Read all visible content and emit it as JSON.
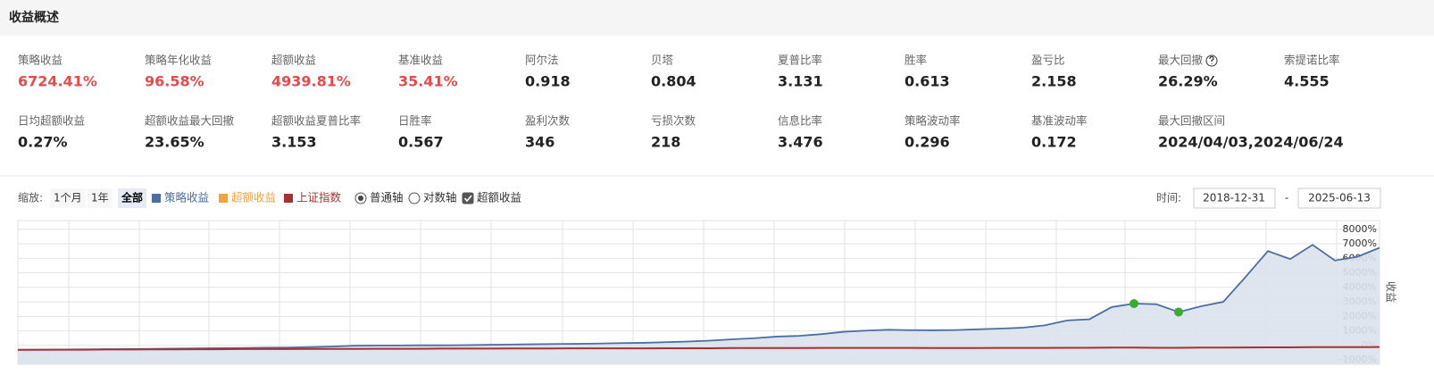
{
  "header": {
    "title": "收益概述"
  },
  "metrics": [
    [
      {
        "label": "策略收益",
        "value": "6724.41%",
        "color": "#e84a4a"
      },
      {
        "label": "策略年化收益",
        "value": "96.58%",
        "color": "#e84a4a"
      },
      {
        "label": "超额收益",
        "value": "4939.81%",
        "color": "#e84a4a"
      },
      {
        "label": "基准收益",
        "value": "35.41%",
        "color": "#e84a4a"
      },
      {
        "label": "阿尔法",
        "value": "0.918"
      },
      {
        "label": "贝塔",
        "value": "0.804"
      },
      {
        "label": "夏普比率",
        "value": "3.131"
      },
      {
        "label": "胜率",
        "value": "0.613"
      },
      {
        "label": "盈亏比",
        "value": "2.158"
      },
      {
        "label": "最大回撤",
        "value": "26.29%",
        "help": true
      },
      {
        "label": "索提诺比率",
        "value": "4.555"
      }
    ],
    [
      {
        "label": "日均超额收益",
        "value": "0.27%"
      },
      {
        "label": "超额收益最大回撤",
        "value": "23.65%"
      },
      {
        "label": "超额收益夏普比率",
        "value": "3.153"
      },
      {
        "label": "日胜率",
        "value": "0.567"
      },
      {
        "label": "盈利次数",
        "value": "346"
      },
      {
        "label": "亏损次数",
        "value": "218"
      },
      {
        "label": "信息比率",
        "value": "3.476"
      },
      {
        "label": "策略波动率",
        "value": "0.296"
      },
      {
        "label": "基准波动率",
        "value": "0.172"
      },
      {
        "label": "最大回撤区间",
        "value": "2024/04/03,2024/06/24"
      }
    ]
  ],
  "toolbar": {
    "zoom_label": "缩放:",
    "zoom_options": [
      "1个月",
      "1年",
      "全部"
    ],
    "zoom_selected": 2,
    "axis_options": [
      "普通轴",
      "对数轴"
    ],
    "axis_selected": 0,
    "excess_checkbox": "超额收益",
    "excess_checked": true,
    "time_label": "时间:",
    "start_date": "2018-12-31",
    "separator": "-",
    "end_date": "2025-06-13"
  },
  "chart_data": {
    "type": "area",
    "y_axis_label": "收益",
    "grid": true,
    "ylim": [
      -1300,
      8600
    ],
    "yticks": [
      {
        "value": 8000,
        "label": "8000%"
      },
      {
        "value": 7000,
        "label": "7000%"
      },
      {
        "value": 6000,
        "label": "6000%"
      },
      {
        "value": 5000,
        "label": "5000%"
      },
      {
        "value": 4000,
        "label": "4000%"
      },
      {
        "value": 3000,
        "label": "3000%"
      },
      {
        "value": 2000,
        "label": "2000%"
      },
      {
        "value": 1000,
        "label": "1000%"
      },
      {
        "value": 0,
        "label": "0%"
      },
      {
        "value": -1000,
        "label": "-1000%"
      }
    ],
    "categories": [
      null,
      null,
      null,
      null,
      null,
      null,
      null,
      null,
      null,
      null,
      null,
      null,
      null,
      null,
      null,
      null,
      null,
      null,
      null,
      null,
      null,
      null,
      null,
      null,
      null,
      null,
      null,
      null,
      null,
      null,
      null,
      null,
      null,
      null,
      null,
      null,
      null,
      null,
      null,
      null,
      null,
      null,
      null,
      null,
      null,
      null,
      null,
      null,
      null,
      null,
      null,
      null,
      null,
      null,
      null,
      null,
      null,
      null,
      null,
      null,
      null,
      null
    ],
    "series": [
      {
        "name": "策略收益",
        "color": "#4a6fa5",
        "fill": "#dbe2ec",
        "values": [
          -300,
          -290,
          -280,
          -270,
          -260,
          -250,
          -230,
          -220,
          -200,
          -190,
          -180,
          -160,
          -150,
          -120,
          -80,
          -20,
          0,
          0,
          10,
          10,
          20,
          40,
          60,
          80,
          100,
          110,
          130,
          160,
          180,
          220,
          270,
          330,
          420,
          500,
          610,
          660,
          780,
          940,
          1020,
          1080,
          1050,
          1040,
          1060,
          1110,
          1160,
          1220,
          1380,
          1720,
          1800,
          2640,
          2880,
          2840,
          2300,
          2700,
          3000,
          4720,
          6500,
          5950,
          6930,
          5850,
          6100,
          6724
        ]
      },
      {
        "name": "超额收益",
        "color": "#f5a243",
        "values": [
          null,
          null,
          null,
          null,
          null,
          null,
          null,
          null,
          null,
          null,
          null,
          null,
          null,
          null,
          null,
          null,
          null,
          null,
          null,
          null,
          null,
          null,
          null,
          null,
          null,
          null,
          null,
          null,
          null,
          null,
          null,
          null,
          null,
          null,
          null,
          null,
          null,
          null,
          null,
          null,
          null,
          null,
          null,
          null,
          null,
          null,
          null,
          null,
          null,
          null,
          null,
          null,
          null,
          null,
          null,
          null,
          null,
          null,
          null,
          null,
          null,
          null
        ]
      },
      {
        "name": "上证指数",
        "color": "#a83232",
        "values": [
          -300,
          -300,
          -290,
          -290,
          -280,
          -280,
          -270,
          -270,
          -260,
          -260,
          -250,
          -250,
          -250,
          -240,
          -240,
          -240,
          -230,
          -230,
          -230,
          -220,
          -220,
          -220,
          -210,
          -210,
          -210,
          -200,
          -200,
          -200,
          -200,
          -190,
          -190,
          -190,
          -180,
          -180,
          -180,
          -180,
          -170,
          -170,
          -170,
          -170,
          -170,
          -180,
          -180,
          -180,
          -170,
          -170,
          -170,
          -160,
          -160,
          -150,
          -150,
          -160,
          -160,
          -150,
          -150,
          -140,
          -130,
          -130,
          -120,
          -120,
          -120,
          -110
        ]
      }
    ],
    "markers": {
      "color": "#3aaa35",
      "values": [
        null,
        null,
        null,
        null,
        null,
        null,
        null,
        null,
        null,
        null,
        null,
        null,
        null,
        null,
        null,
        null,
        null,
        null,
        null,
        null,
        null,
        null,
        null,
        null,
        null,
        null,
        null,
        null,
        null,
        null,
        null,
        null,
        null,
        null,
        null,
        null,
        null,
        null,
        null,
        null,
        null,
        null,
        null,
        null,
        null,
        null,
        null,
        null,
        null,
        null,
        2880,
        null,
        2300,
        null,
        null,
        null,
        null,
        null,
        null,
        null,
        null,
        null
      ]
    }
  }
}
